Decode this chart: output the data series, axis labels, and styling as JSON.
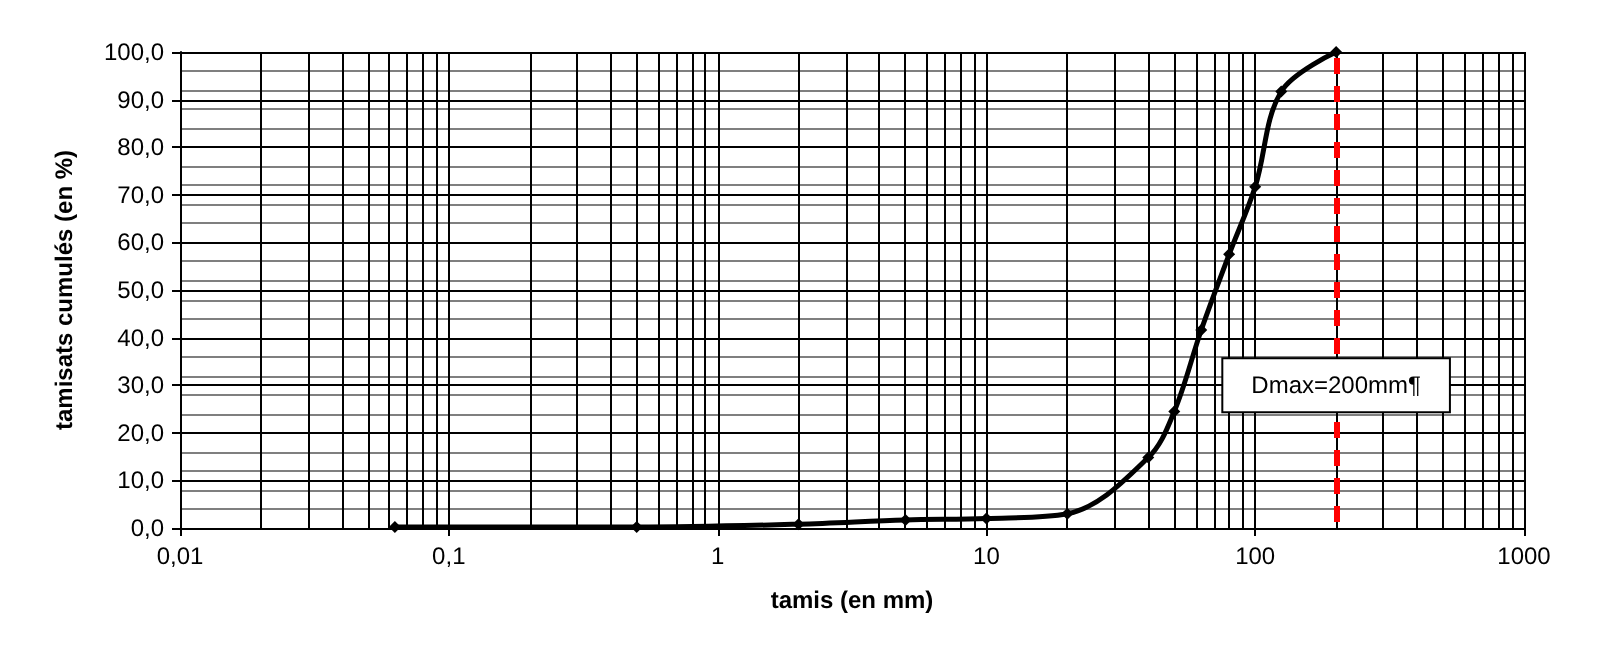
{
  "chart_data": {
    "type": "line",
    "xlabel": "tamis (en mm)",
    "ylabel": "tamisats cumulés (en %)",
    "x": [
      0.063,
      0.5,
      2,
      5,
      10,
      20,
      40,
      50,
      63,
      80,
      100,
      125,
      200
    ],
    "series": [
      {
        "color": "#000000",
        "values": [
          0.2,
          0.2,
          0.8,
          1.7,
          2.0,
          3.0,
          14.8,
          24.5,
          41.6,
          57.5,
          71.7,
          91.7,
          100.0
        ]
      }
    ],
    "log": "x",
    "xlim": [
      0.01,
      1000
    ],
    "xticks": [
      {
        "value": 0.01,
        "label": "0,01"
      },
      {
        "value": 0.1,
        "label": "0,1"
      },
      {
        "value": 1,
        "label": "1"
      },
      {
        "value": 10,
        "label": "10"
      },
      {
        "value": 100,
        "label": "100"
      },
      {
        "value": 1000,
        "label": "1000"
      }
    ],
    "ylim": [
      0,
      100
    ],
    "yticks": [
      {
        "value": 0,
        "label": "0,0"
      },
      {
        "value": 10,
        "label": "10,0"
      },
      {
        "value": 20,
        "label": "20,0"
      },
      {
        "value": 30,
        "label": "30,0"
      },
      {
        "value": 40,
        "label": "40,0"
      },
      {
        "value": 50,
        "label": "50,0"
      },
      {
        "value": 60,
        "label": "60,0"
      },
      {
        "value": 70,
        "label": "70,0"
      },
      {
        "value": 80,
        "label": "80,0"
      },
      {
        "value": 90,
        "label": "90,0"
      },
      {
        "value": 100,
        "label": "100,0"
      }
    ],
    "grid": true,
    "marker": "diamond",
    "line_style": "solid",
    "ref_lines": [
      {
        "axis": "x",
        "value": 200,
        "color": "#ff0000",
        "line_style": "dashed"
      }
    ],
    "annotations": [
      {
        "text": "Dmax=200mm¶",
        "x": 200,
        "y": 30
      }
    ]
  }
}
